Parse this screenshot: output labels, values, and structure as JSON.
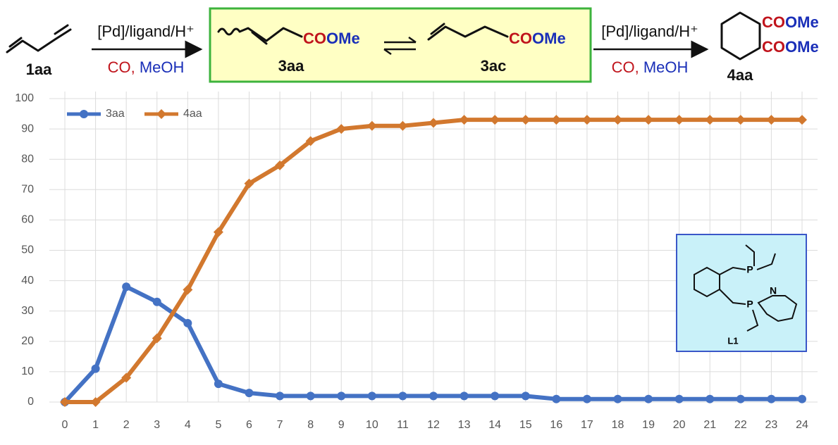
{
  "scheme": {
    "start_label": "1aa",
    "step_1": {
      "catalyst": "[Pd]/ligand/H⁺",
      "co": "CO,",
      "meoh": "MeOH"
    },
    "intermediate_1": {
      "ester_co": "CO",
      "ester_ome": "OMe",
      "label": "3aa"
    },
    "intermediate_2": {
      "ester_co": "CO",
      "ester_ome": "OMe",
      "label": "3ac"
    },
    "step_2": {
      "catalyst": "[Pd]/ligand/H⁺",
      "co": "CO,",
      "meoh": "MeOH"
    },
    "product": {
      "ester_1_co": "CO",
      "ester_1_ome": "OMe",
      "ester_2_co": "CO",
      "ester_2_ome": "OMe",
      "label": "4aa"
    },
    "ligand": {
      "p_top": "P",
      "p_bottom": "P",
      "n": "N",
      "label": "L1"
    }
  },
  "chart_data": {
    "type": "line",
    "x": [
      0,
      1,
      2,
      3,
      4,
      5,
      6,
      7,
      8,
      9,
      10,
      11,
      12,
      13,
      14,
      15,
      16,
      17,
      18,
      19,
      20,
      21,
      22,
      23,
      24
    ],
    "series": [
      {
        "name": "3aa",
        "color": "#4472c4",
        "marker": "circle",
        "values": [
          0,
          11,
          38,
          33,
          26,
          6,
          3,
          2,
          2,
          2,
          2,
          2,
          2,
          2,
          2,
          2,
          1,
          1,
          1,
          1,
          1,
          1,
          1,
          1,
          1
        ]
      },
      {
        "name": "4aa",
        "color": "#d2782e",
        "marker": "diamond",
        "values": [
          0,
          0,
          8,
          21,
          37,
          56,
          72,
          78,
          86,
          90,
          91,
          91,
          92,
          93,
          93,
          93,
          93,
          93,
          93,
          93,
          93,
          93,
          93,
          93,
          93
        ]
      }
    ],
    "xlim": [
      0,
      24
    ],
    "xticks": [
      0,
      1,
      2,
      3,
      4,
      5,
      6,
      7,
      8,
      9,
      10,
      11,
      12,
      13,
      14,
      15,
      16,
      17,
      18,
      19,
      20,
      21,
      22,
      23,
      24
    ],
    "ylim": [
      0,
      100
    ],
    "yticks": [
      0,
      10,
      20,
      30,
      40,
      50,
      60,
      70,
      80,
      90,
      100
    ],
    "grid": true,
    "legend": "top-left"
  }
}
